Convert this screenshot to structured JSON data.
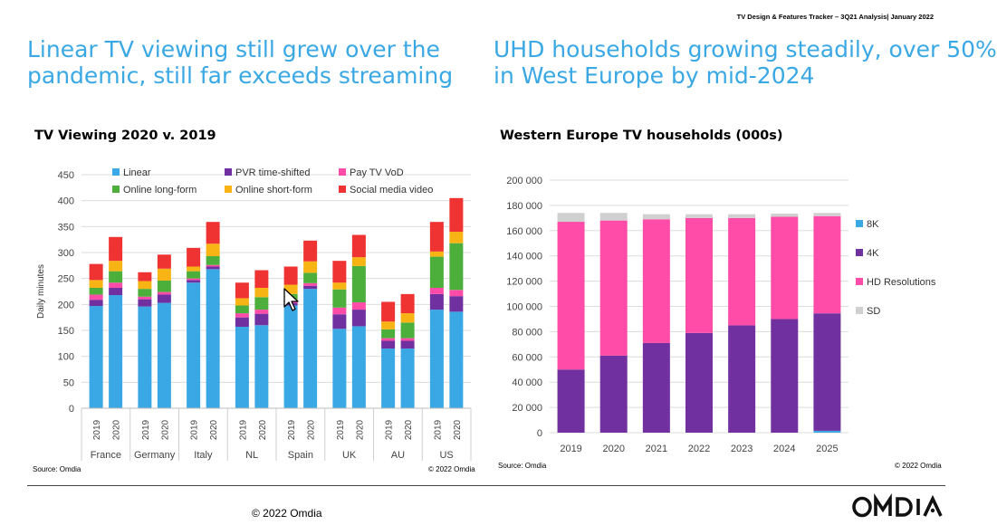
{
  "header": {
    "tracker": "TV Design & Features Tracker – 3Q21 Analysis| January 2022",
    "headline_left_line1": "Linear TV viewing still grew over the",
    "headline_left_line2": "pandemic, still far exceeds streaming",
    "headline_right_line1": "UHD households growing steadily, over 50%",
    "headline_right_line2": "in West Europe by mid-2024"
  },
  "colors": {
    "headline": "#3aa8e4",
    "linear": "#3aa8e4",
    "pvr": "#7030a0",
    "payvod": "#ff4ca8",
    "online_long": "#4caf3c",
    "online_short": "#f7b414",
    "social": "#ef3232",
    "k8": "#3aa8e4",
    "k4": "#7030a0",
    "hd": "#ff4ca8",
    "sd": "#d0d0d0"
  },
  "chart_data": [
    {
      "type": "bar",
      "stacked": true,
      "title": "TV Viewing 2020 v. 2019",
      "ylabel": "Daily minutes",
      "ylim": [
        0,
        450
      ],
      "yticks": [
        0,
        50,
        100,
        150,
        200,
        250,
        300,
        350,
        400,
        450
      ],
      "grid": true,
      "legend_position": "top",
      "groups": [
        "France",
        "Germany",
        "Italy",
        "NL",
        "Spain",
        "UK",
        "AU",
        "US"
      ],
      "categories": [
        "2019",
        "2020"
      ],
      "series": [
        {
          "name": "Linear",
          "color_key": "linear",
          "values": [
            [
              197,
              218
            ],
            [
              196,
              203
            ],
            [
              242,
              268
            ],
            [
              157,
              160
            ],
            [
              198,
              230
            ],
            [
              153,
              158
            ],
            [
              115,
              115
            ],
            [
              190,
              186
            ]
          ]
        },
        {
          "name": "PVR time-shifted",
          "color_key": "pvr",
          "values": [
            [
              12,
              14
            ],
            [
              14,
              16
            ],
            [
              5,
              5
            ],
            [
              18,
              22
            ],
            [
              5,
              6
            ],
            [
              28,
              32
            ],
            [
              15,
              15
            ],
            [
              30,
              30
            ]
          ]
        },
        {
          "name": "Pay TV VoD",
          "color_key": "payvod",
          "values": [
            [
              10,
              10
            ],
            [
              5,
              5
            ],
            [
              3,
              3
            ],
            [
              8,
              8
            ],
            [
              5,
              5
            ],
            [
              13,
              14
            ],
            [
              5,
              5
            ],
            [
              12,
              12
            ]
          ]
        },
        {
          "name": "Online long-form",
          "color_key": "online_long",
          "values": [
            [
              13,
              22
            ],
            [
              15,
              22
            ],
            [
              14,
              17
            ],
            [
              15,
              24
            ],
            [
              12,
              20
            ],
            [
              35,
              70
            ],
            [
              17,
              30
            ],
            [
              60,
              90
            ]
          ]
        },
        {
          "name": "Online short-form",
          "color_key": "online_short",
          "values": [
            [
              15,
              20
            ],
            [
              15,
              23
            ],
            [
              9,
              24
            ],
            [
              14,
              18
            ],
            [
              18,
              22
            ],
            [
              13,
              17
            ],
            [
              15,
              18
            ],
            [
              10,
              22
            ]
          ]
        },
        {
          "name": "Social media video",
          "color_key": "social",
          "values": [
            [
              31,
              46
            ],
            [
              17,
              27
            ],
            [
              36,
              42
            ],
            [
              30,
              34
            ],
            [
              35,
              40
            ],
            [
              42,
              43
            ],
            [
              38,
              37
            ],
            [
              57,
              65
            ]
          ]
        }
      ]
    },
    {
      "type": "bar",
      "stacked": true,
      "title": "Western Europe TV households (000s)",
      "ylim": [
        0,
        200000
      ],
      "yticks": [
        "0",
        "20 000",
        "40 000",
        "60 000",
        "80 000",
        "100 000",
        "120 000",
        "140 000",
        "160 000",
        "180 000",
        "200 000"
      ],
      "grid": true,
      "legend_position": "right",
      "categories": [
        "2019",
        "2020",
        "2021",
        "2022",
        "2023",
        "2024",
        "2025"
      ],
      "series": [
        {
          "name": "8K",
          "color_key": "k8",
          "values": [
            0,
            0,
            0,
            0,
            0,
            0,
            1500
          ]
        },
        {
          "name": "4K",
          "color_key": "k4",
          "values": [
            50000,
            61000,
            71000,
            79000,
            85000,
            90000,
            93000
          ]
        },
        {
          "name": "HD Resolutions",
          "color_key": "hd",
          "values": [
            117000,
            107000,
            98000,
            91000,
            85000,
            81000,
            77000
          ]
        },
        {
          "name": "SD",
          "color_key": "sd",
          "values": [
            7000,
            6000,
            4000,
            3000,
            3000,
            2500,
            2500
          ]
        }
      ]
    }
  ],
  "sources": {
    "left_source": "Source: Omdia",
    "left_copyright": "© 2022 Omdia",
    "right_source": "Source: Omdia",
    "right_copyright": "© 2022 Omdia"
  },
  "footer": {
    "copyright": "© 2022 Omdia",
    "logo_text": "OMDIA"
  }
}
